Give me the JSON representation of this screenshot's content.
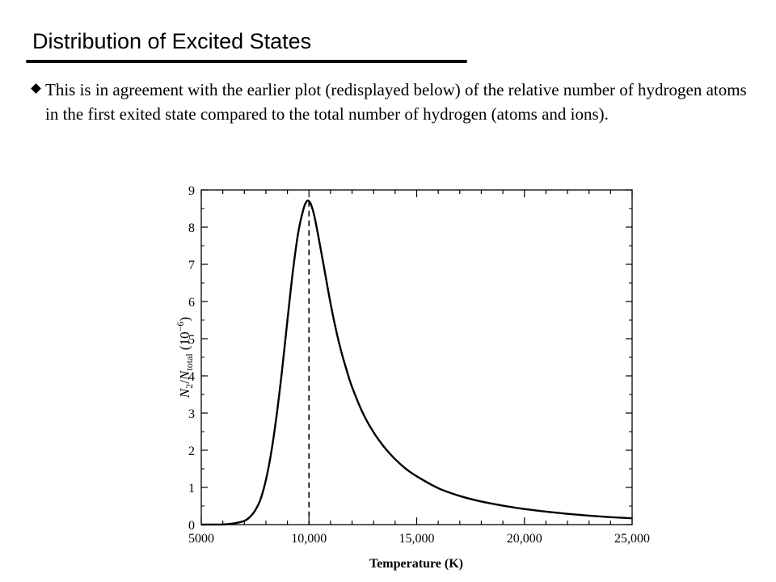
{
  "slide": {
    "title": "Distribution of Excited States",
    "bullet": "This is in agreement with the earlier plot (redisplayed below) of the relative number of hydrogen atoms in the first exited state compared to the total number of hydrogen (atoms and ions)."
  },
  "chart_data": {
    "type": "line",
    "xlabel": "Temperature (K)",
    "ylabel": {
      "n": "N",
      "n_sub": "2",
      "slash": "/",
      "n2": "N",
      "n2_sub": "total",
      "unit_open": " (10",
      "unit_exp": "−6",
      "unit_close": ")"
    },
    "xlim": [
      5000,
      25000
    ],
    "ylim": [
      0,
      9
    ],
    "x_ticks": [
      5000,
      10000,
      15000,
      20000,
      25000
    ],
    "x_tick_labels": [
      "5000",
      "10,000",
      "15,000",
      "20,000",
      "25,000"
    ],
    "y_ticks": [
      0,
      1,
      2,
      3,
      4,
      5,
      6,
      7,
      8,
      9
    ],
    "y_tick_labels": [
      "0",
      "1",
      "2",
      "3",
      "4",
      "5",
      "6",
      "7",
      "8",
      "9"
    ],
    "grid": false,
    "series": [
      {
        "x": [
          5000,
          6000,
          6500,
          7000,
          7250,
          7500,
          7750,
          8000,
          8250,
          8500,
          8750,
          9000,
          9250,
          9500,
          9750,
          9900,
          10000,
          10100,
          10250,
          10500,
          10750,
          11000,
          11250,
          11500,
          11750,
          12000,
          12500,
          13000,
          13500,
          14000,
          14500,
          15000,
          16000,
          17000,
          18000,
          19000,
          20000,
          21000,
          22000,
          23000,
          24000,
          25000
        ],
        "values": [
          0,
          0.005,
          0.03,
          0.1,
          0.2,
          0.38,
          0.68,
          1.2,
          1.95,
          2.95,
          4.15,
          5.5,
          6.8,
          7.85,
          8.5,
          8.7,
          8.7,
          8.6,
          8.3,
          7.55,
          6.75,
          5.95,
          5.25,
          4.65,
          4.15,
          3.7,
          3.0,
          2.48,
          2.08,
          1.76,
          1.5,
          1.3,
          0.98,
          0.77,
          0.62,
          0.51,
          0.42,
          0.35,
          0.29,
          0.24,
          0.2,
          0.17
        ]
      }
    ],
    "annotations": [
      {
        "type": "vline",
        "x": 10000,
        "y_top": 8.7,
        "style": "dashed"
      }
    ]
  }
}
